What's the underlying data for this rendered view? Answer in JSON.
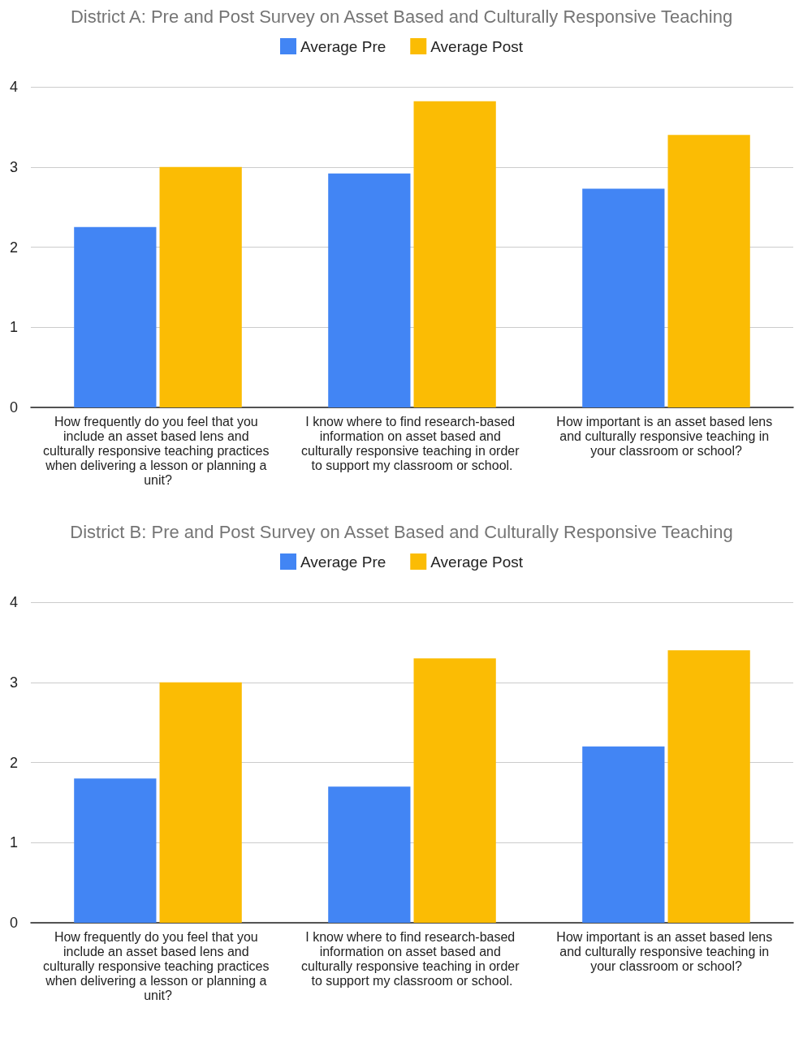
{
  "chart_data": [
    {
      "type": "bar",
      "title": "District A: Pre and Post Survey on Asset Based and Culturally Responsive Teaching",
      "categories": [
        "How frequently do you feel that you include an asset based lens and culturally responsive teaching practices when delivering a lesson or planning a unit?",
        "I know where to find research-based information on asset based and culturally responsive teaching in order to support my classroom or school.",
        "How important is an asset based lens and culturally responsive teaching in your classroom or school?"
      ],
      "series": [
        {
          "name": "Average Pre",
          "color": "#4285f4",
          "values": [
            2.25,
            2.92,
            2.73
          ]
        },
        {
          "name": "Average Post",
          "color": "#fbbc04",
          "values": [
            3.0,
            3.82,
            3.4
          ]
        }
      ],
      "ylim": [
        0,
        4
      ],
      "yticks": [
        0,
        1,
        2,
        3,
        4
      ],
      "grid": "y",
      "legend": "top"
    },
    {
      "type": "bar",
      "title": "District B: Pre and Post Survey on Asset Based and Culturally Responsive Teaching",
      "categories": [
        "How frequently do you feel that you include an asset based lens and culturally responsive teaching practices when delivering a lesson or planning a unit?",
        "I know where to find research-based information on asset based and culturally responsive teaching in order to support my classroom or school.",
        "How important is an asset based lens and culturally responsive teaching in your classroom or school?"
      ],
      "series": [
        {
          "name": "Average Pre",
          "color": "#4285f4",
          "values": [
            1.8,
            1.7,
            2.2
          ]
        },
        {
          "name": "Average Post",
          "color": "#fbbc04",
          "values": [
            3.0,
            3.3,
            3.4
          ]
        }
      ],
      "ylim": [
        0,
        4
      ],
      "yticks": [
        0,
        1,
        2,
        3,
        4
      ],
      "grid": "y",
      "legend": "top"
    }
  ]
}
